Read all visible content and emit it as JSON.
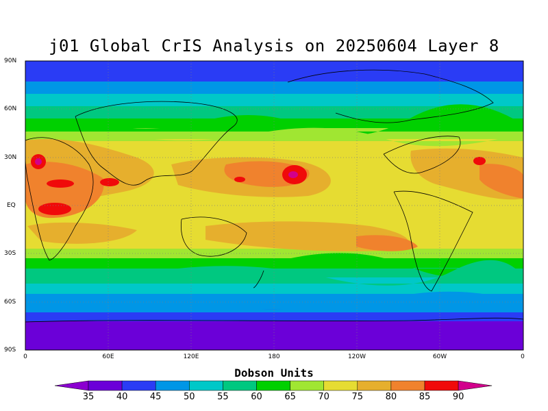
{
  "title": "j01 Global CrIS Analysis on 20250604 Layer 8",
  "map": {
    "lat_labels": [
      "90N",
      "60N",
      "30N",
      "EQ",
      "30S",
      "60S",
      "90S"
    ],
    "lon_labels": [
      "0",
      "60E",
      "120E",
      "180",
      "120W",
      "60W",
      "0"
    ],
    "grid": "dotted"
  },
  "colorbar": {
    "title": "Dobson Units",
    "ticks": [
      "35",
      "40",
      "45",
      "50",
      "55",
      "60",
      "65",
      "70",
      "75",
      "80",
      "85",
      "90"
    ],
    "colors": [
      "#8b00d0",
      "#6b00d8",
      "#2a3cf5",
      "#0096e6",
      "#00c8c8",
      "#00c880",
      "#00d000",
      "#a0e632",
      "#e6dc32",
      "#e6af2d",
      "#f0822d",
      "#f00a0a",
      "#d2008c"
    ]
  },
  "colors": {
    "ocean_contour_line": "#000000"
  }
}
